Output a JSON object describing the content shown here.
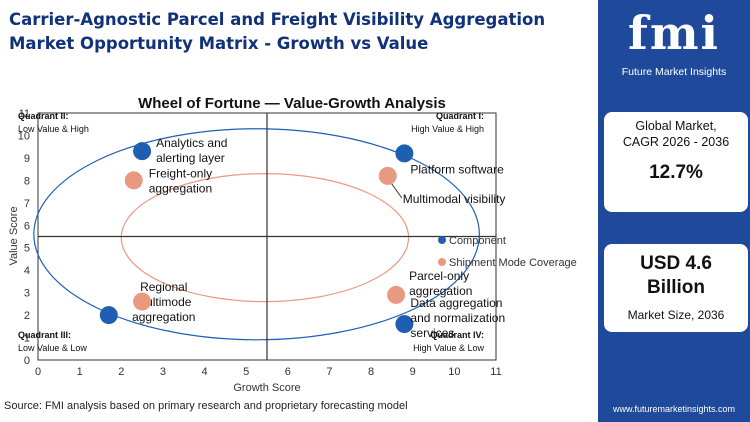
{
  "header": {
    "title": "Carrier-Agnostic Parcel and Freight Visibility Aggregation Market Opportunity Matrix - Growth vs Value"
  },
  "chart_data": {
    "type": "scatter",
    "title": "Wheel of Fortune — Value-Growth Analysis",
    "xlabel": "Growth Score",
    "ylabel": "Value Score",
    "xlim": [
      0,
      11
    ],
    "ylim": [
      0,
      11
    ],
    "x_ticks": [
      0,
      1,
      2,
      3,
      4,
      5,
      6,
      7,
      8,
      9,
      10,
      11
    ],
    "y_ticks": [
      0,
      1,
      2,
      3,
      4,
      5,
      6,
      7,
      8,
      9,
      10,
      11
    ],
    "divider_x": 5.5,
    "divider_y": 5.5,
    "grid": false,
    "legend_position": "right",
    "series": [
      {
        "name": "Component",
        "color": "#1f5fb1",
        "points": [
          {
            "label": "Analytics and alerting layer",
            "x": 2.5,
            "y": 9.3
          },
          {
            "label": "Platform software",
            "x": 8.8,
            "y": 9.2
          },
          {
            "label": "Regional multimode aggregation",
            "x": 1.7,
            "y": 2.0
          },
          {
            "label": "Data aggregation and normalization services",
            "x": 8.8,
            "y": 1.6
          }
        ]
      },
      {
        "name": "Shipment Mode Coverage",
        "color": "#e9997f",
        "points": [
          {
            "label": "Freight-only aggregation",
            "x": 2.3,
            "y": 8.0
          },
          {
            "label": "Multimodal visibility",
            "x": 8.4,
            "y": 8.2
          },
          {
            "label": "",
            "x": 2.5,
            "y": 2.6
          },
          {
            "label": "Parcel-only aggregation",
            "x": 8.6,
            "y": 2.9
          }
        ]
      }
    ],
    "quadrants": [
      {
        "name": "Quadrant II:",
        "desc": "Low Value & High"
      },
      {
        "name": "Quadrant I:",
        "desc": "High Value & High"
      },
      {
        "name": "Quadrant III:",
        "desc": "Low Value & Low"
      },
      {
        "name": "Quadrant IV:",
        "desc": "High Value & Low"
      }
    ]
  },
  "source": "Source: FMI analysis based on primary research and proprietary forecasting model",
  "sidebar": {
    "logo_text": "fmi",
    "logo_tagline": "Future Market Insights",
    "cagr_label_1": "Global Market,",
    "cagr_label_2": "CAGR 2026 - 2036",
    "cagr_value": "12.7%",
    "size_value_1": "USD 4.6",
    "size_value_2": "Billion",
    "size_label": "Market Size, 2036",
    "website": "www.futuremarketinsights.com"
  },
  "colors": {
    "brand_blue": "#1f4a9b",
    "title_blue": "#11317a",
    "component": "#1f5fb1",
    "shipment_mode": "#e9997f"
  }
}
